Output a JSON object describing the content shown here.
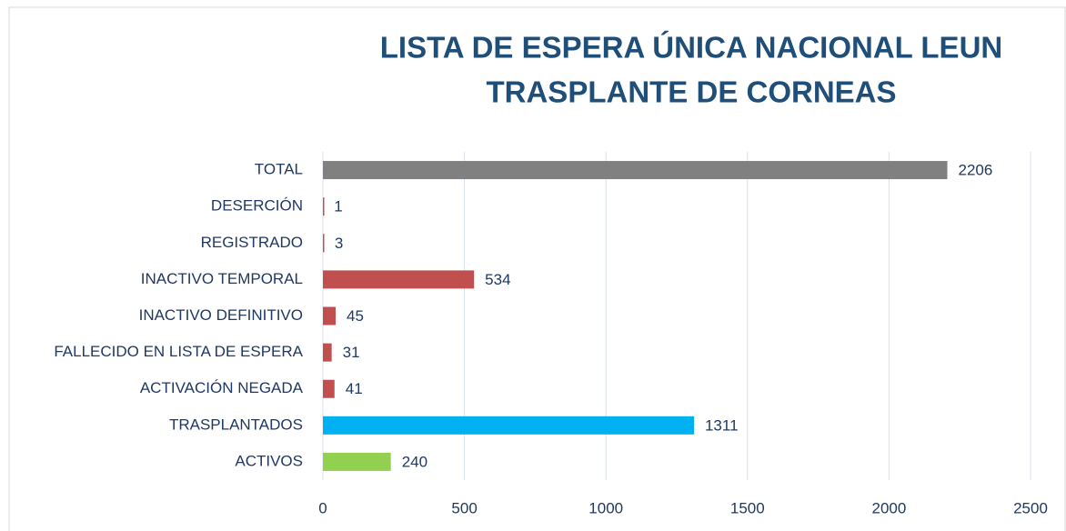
{
  "chart_data": {
    "type": "hbar",
    "title": [
      "LISTA DE ESPERA ÚNICA NACIONAL LEUN",
      "TRASPLANTE DE CORNEAS"
    ],
    "categories": [
      "TOTAL",
      "DESERCIÓN",
      "REGISTRADO",
      "INACTIVO TEMPORAL",
      "INACTIVO DEFINITIVO",
      "FALLECIDO EN LISTA DE ESPERA",
      "ACTIVACIÓN NEGADA",
      "TRASPLANTADOS",
      "ACTIVOS"
    ],
    "values": [
      2206,
      1,
      3,
      534,
      45,
      31,
      41,
      1311,
      240
    ],
    "colors": [
      "#808080",
      "#c0504d",
      "#c0504d",
      "#c0504d",
      "#c0504d",
      "#c0504d",
      "#c0504d",
      "#00b0f0",
      "#92d050"
    ],
    "xlim": [
      0,
      2500
    ],
    "xticks": [
      0,
      500,
      1000,
      1500,
      2000,
      2500
    ],
    "grid": true
  }
}
